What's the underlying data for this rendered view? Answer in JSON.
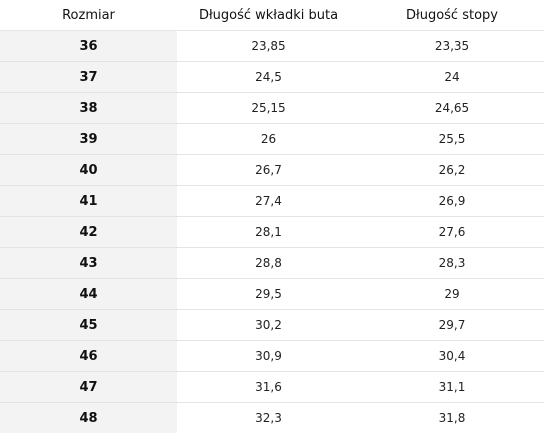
{
  "table": {
    "headers": [
      "Rozmiar",
      "Długość wkładki buta",
      "Długość stopy"
    ],
    "rows": [
      [
        "36",
        "23,85",
        "23,35"
      ],
      [
        "37",
        "24,5",
        "24"
      ],
      [
        "38",
        "25,15",
        "24,65"
      ],
      [
        "39",
        "26",
        "25,5"
      ],
      [
        "40",
        "26,7",
        "26,2"
      ],
      [
        "41",
        "27,4",
        "26,9"
      ],
      [
        "42",
        "28,1",
        "27,6"
      ],
      [
        "43",
        "28,8",
        "28,3"
      ],
      [
        "44",
        "29,5",
        "29"
      ],
      [
        "45",
        "30,2",
        "29,7"
      ],
      [
        "46",
        "30,9",
        "30,4"
      ],
      [
        "47",
        "31,6",
        "31,1"
      ],
      [
        "48",
        "32,3",
        "31,8"
      ]
    ]
  }
}
